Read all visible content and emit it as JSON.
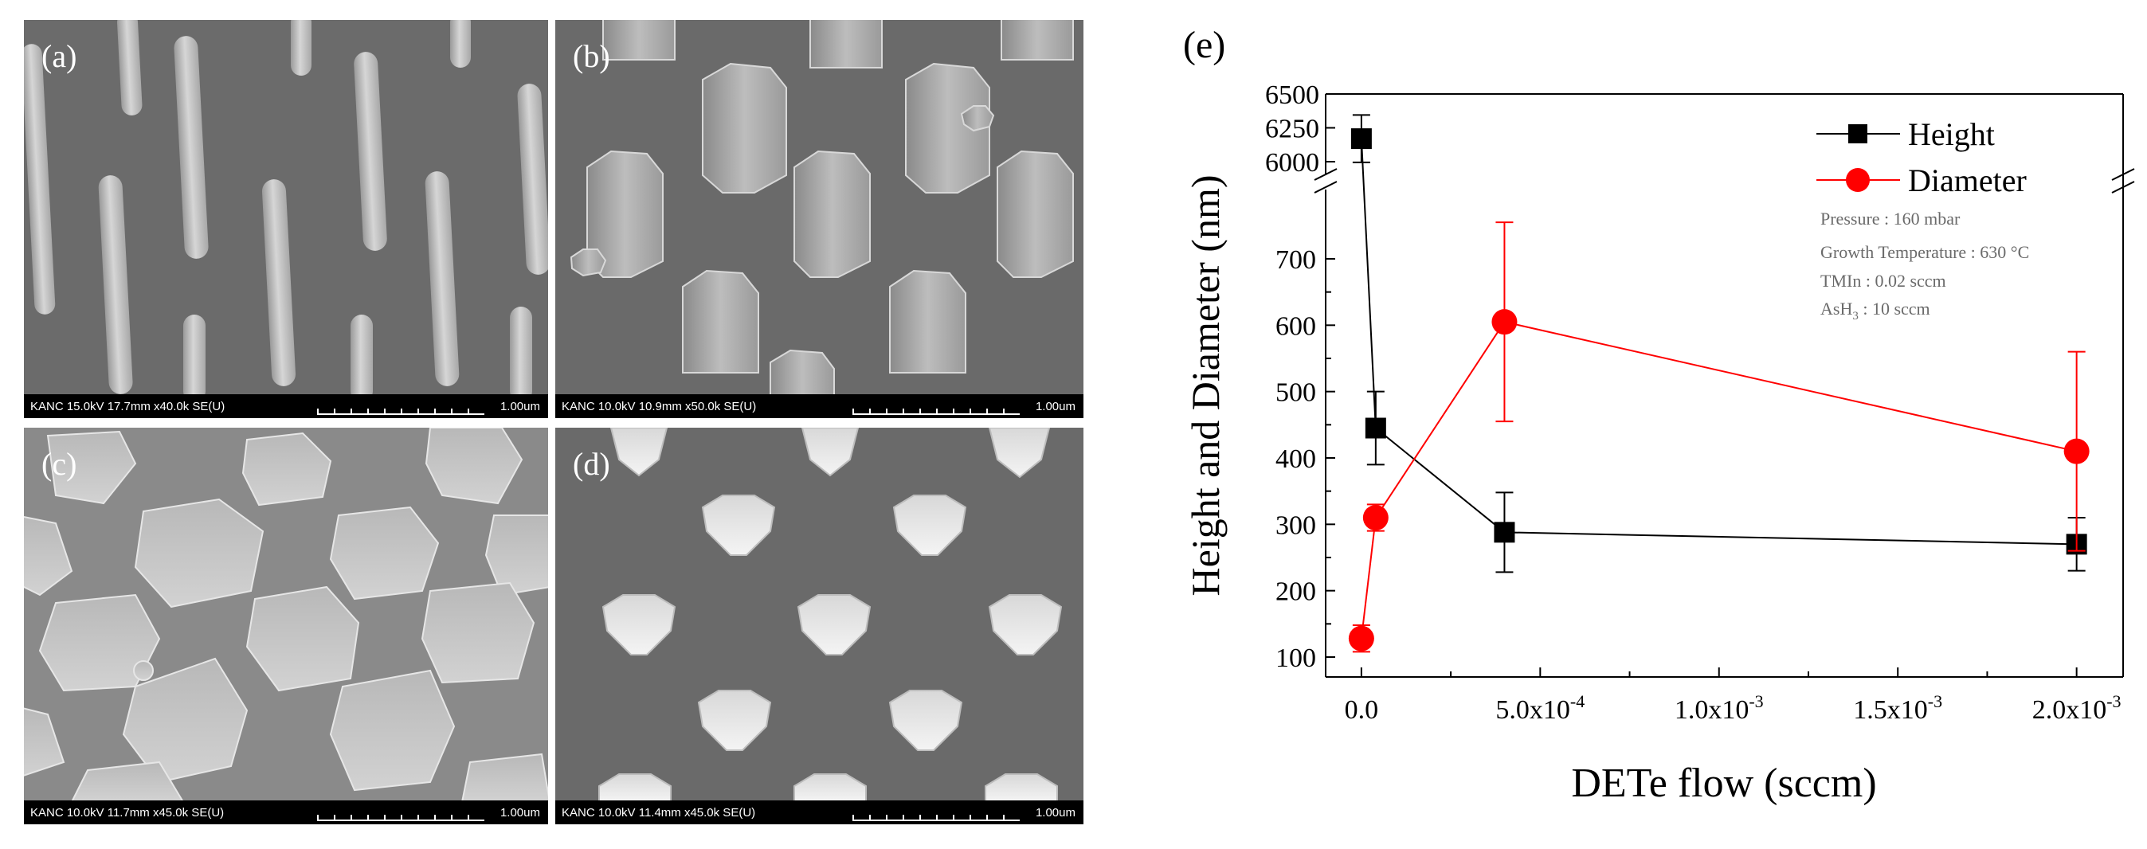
{
  "panels": [
    {
      "label": "(a)",
      "info": "KANC 15.0kV 17.7mm x40.0k SE(U)",
      "scale": "1.00um"
    },
    {
      "label": "(b)",
      "info": "KANC 10.0kV 10.9mm x50.0k SE(U)",
      "scale": "1.00um"
    },
    {
      "label": "(c)",
      "info": "KANC 10.0kV 11.7mm x45.0k SE(U)",
      "scale": "1.00um"
    },
    {
      "label": "(d)",
      "info": "KANC 10.0kV 11.4mm x45.0k SE(U)",
      "scale": "1.00um"
    }
  ],
  "chart_data": {
    "type": "scatter",
    "panel_label": "(e)",
    "title": "",
    "xlabel": "DETe flow (sccm)",
    "ylabel": "Height and Diameter (nm)",
    "x_ticks": [
      "0.0",
      "5.0x10",
      "1.0x10",
      "1.5x10",
      "2.0x10"
    ],
    "x_tick_exponents": [
      "",
      "-4",
      "-3",
      "-3",
      "-3"
    ],
    "x_tick_values": [
      0,
      0.0005,
      0.001,
      0.0015,
      0.002
    ],
    "xlim": [
      -0.0001,
      0.00213
    ],
    "y_lower_ticks": [
      "100",
      "200",
      "300",
      "400",
      "500",
      "600",
      "700"
    ],
    "y_lower_values": [
      100,
      200,
      300,
      400,
      500,
      600,
      700
    ],
    "y_lower_range": [
      70,
      790
    ],
    "y_upper_ticks": [
      "6000",
      "6250",
      "6500"
    ],
    "y_upper_values": [
      6000,
      6250,
      6500
    ],
    "y_upper_range": [
      5900,
      6500
    ],
    "axis_break": true,
    "legend_position": "top-right",
    "annotations": [
      "Pressure : 160 mbar",
      "Growth Temperature : 630 °C",
      "TMIn : 0.02 sccm",
      "AsH",
      "3",
      " : 10 sccm"
    ],
    "series": [
      {
        "name": "Height",
        "color": "#000000",
        "marker": "square",
        "x": [
          0,
          4e-05,
          0.0004,
          0.002
        ],
        "y": [
          6170,
          445,
          288,
          270
        ],
        "err": [
          175,
          55,
          60,
          40
        ]
      },
      {
        "name": "Diameter",
        "color": "#ff0000",
        "marker": "circle",
        "x": [
          0,
          4e-05,
          0.0004,
          0.002
        ],
        "y": [
          128,
          310,
          605,
          410
        ],
        "err": [
          20,
          20,
          150,
          150
        ]
      }
    ]
  }
}
